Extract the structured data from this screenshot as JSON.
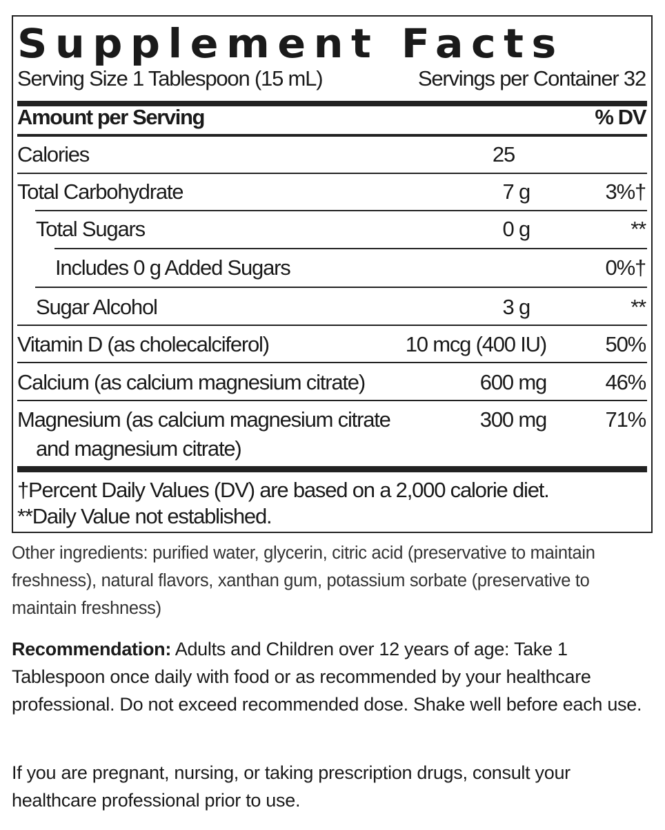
{
  "title": "Supplement Facts",
  "serving_size": "Serving Size 1 Tablespoon (15 mL)",
  "servings_per_container": "Servings per Container 32",
  "header": {
    "amount": "Amount per Serving",
    "dv": "% DV"
  },
  "rows": [
    {
      "name": "Calories",
      "amount": "25",
      "dv": ""
    },
    {
      "name": "Total Carbohydrate",
      "amount": "7 g",
      "dv": "3%†"
    },
    {
      "name": "Total Sugars",
      "amount": "0 g",
      "dv": "**"
    },
    {
      "name": "Includes 0 g Added Sugars",
      "amount": "",
      "dv": "0%†"
    },
    {
      "name": "Sugar Alcohol",
      "amount": "3 g",
      "dv": "**"
    },
    {
      "name": "Vitamin D (as cholecalciferol)",
      "amount": "10 mcg (400 IU)",
      "dv": "50%"
    },
    {
      "name": "Calcium (as calcium magnesium citrate)",
      "amount": "600 mg",
      "dv": "46%"
    },
    {
      "name": "Magnesium (as calcium magnesium citrate",
      "name_line2": "and magnesium citrate)",
      "amount": "300 mg",
      "dv": "71%"
    }
  ],
  "footnotes": [
    "†Percent Daily Values (DV) are based on a 2,000 calorie diet.",
    "**Daily Value not established."
  ],
  "other_ingredients": "Other ingredients: purified water, glycerin, citric acid (preservative to maintain freshness), natural flavors, xanthan gum, potassium sorbate (preservative to maintain freshness)",
  "recommendation_label": "Recommendation:",
  "recommendation": " Adults and Children over 12 years of age: Take 1 Tablespoon once daily with food or as recommended by your healthcare professional. Do not exceed recommended dose. Shake well before each use.",
  "warning": "If you are pregnant, nursing, or taking prescription drugs, consult your healthcare professional prior to use."
}
